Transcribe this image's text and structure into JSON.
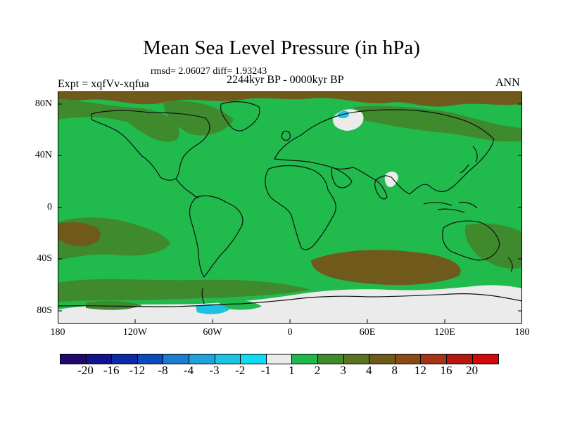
{
  "title": "Mean Sea Level Pressure (in hPa)",
  "stats": "rmsd= 2.06027 diff= 1.93243",
  "experiment": "Expt = xqfVv-xqfua",
  "period": "2244kyr BP - 0000kyr BP",
  "season": "ANN",
  "lat_labels": [
    "80N",
    "40N",
    "0",
    "40S",
    "80S"
  ],
  "lon_labels": [
    "180",
    "120W",
    "60W",
    "0",
    "60E",
    "120E",
    "180"
  ],
  "colorbar": {
    "labels": [
      "-20",
      "-16",
      "-12",
      "-8",
      "-4",
      "-3",
      "-2",
      "-1",
      "1",
      "2",
      "3",
      "4",
      "8",
      "12",
      "16",
      "20"
    ],
    "colors": [
      "#1f0a6b",
      "#12138f",
      "#0b2aa3",
      "#0b4ab8",
      "#1d7bd0",
      "#21a3d9",
      "#1ec2e3",
      "#0fdcf0",
      "#ebebeb",
      "#20b84c",
      "#3e8a2d",
      "#5a7424",
      "#6f5a1c",
      "#8a4a16",
      "#a5331a",
      "#b5180f",
      "#d10b0b"
    ]
  },
  "field_colors": {
    "ocean_base": "#21ba4c",
    "positive_3": "#3e8a2d",
    "positive_4": "#6f5a1c",
    "near_zero": "#ebebeb",
    "negative_2": "#1ec2e3",
    "coast": "#111111"
  }
}
